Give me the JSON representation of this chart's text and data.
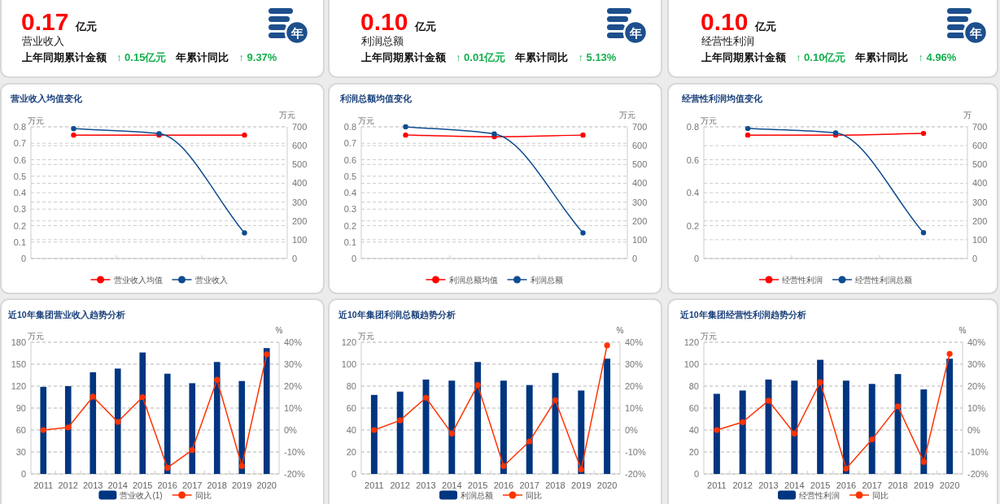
{
  "chart_data": [
    {
      "type": "other",
      "title": "营业收入",
      "annotations": [
        "0.17",
        "亿元",
        "上年同期累计金额",
        "↑ 0.15亿元",
        "年累计同比",
        "↑ 9.37%",
        "年"
      ]
    },
    {
      "type": "other",
      "title": "利润总额",
      "annotations": [
        "0.10",
        "亿元",
        "上年同期累计金额",
        "↑ 0.01亿元",
        "年累计同比",
        "↑ 5.13%",
        "年"
      ]
    },
    {
      "type": "other",
      "title": "经营性利润",
      "annotations": [
        "0.10",
        "亿元",
        "上年同期累计金额",
        "↑ 0.10亿元",
        "年累计同比",
        "↑ 4.96%",
        "年"
      ]
    },
    {
      "type": "line",
      "title": "营业收入均值变化",
      "ylabel": "万元",
      "y2label": "万元",
      "categories": [
        null,
        null,
        null
      ],
      "series": [
        {
          "name": "营业收入均值",
          "color": "#ff0000",
          "values": [
            0.75,
            0.75,
            0.75
          ]
        },
        {
          "name": "营业收入",
          "color": "#0f4c8f",
          "axis": "y2",
          "values": [
            690,
            664,
            136
          ]
        }
      ],
      "ylim": [
        0,
        0.8
      ],
      "yticks": [
        0,
        0.1,
        0.2,
        0.3,
        0.4,
        0.5,
        0.6,
        0.7,
        0.8
      ],
      "y2lim": [
        0,
        700
      ],
      "y2ticks": [
        0,
        100,
        200,
        300,
        400,
        500,
        600,
        700
      ],
      "grid": true,
      "legend": "bottom",
      "marker": "circle"
    },
    {
      "type": "line",
      "title": "利润总额均值变化",
      "ylabel": "万元",
      "y2label": "万元",
      "categories": [
        null,
        null,
        null
      ],
      "series": [
        {
          "name": "利润总额均值",
          "color": "#ff0000",
          "values": [
            0.75,
            0.74,
            0.75
          ]
        },
        {
          "name": "利润总额",
          "color": "#0f4c8f",
          "axis": "y2",
          "values": [
            700,
            662,
            136
          ]
        }
      ],
      "ylim": [
        0,
        0.8
      ],
      "yticks": [
        0,
        0.1,
        0.2,
        0.3,
        0.4,
        0.5,
        0.6,
        0.7,
        0.8
      ],
      "y2lim": [
        0,
        700
      ],
      "y2ticks": [
        0,
        100,
        200,
        300,
        400,
        500,
        600,
        700
      ],
      "grid": true,
      "legend": "bottom",
      "marker": "circle"
    },
    {
      "type": "line",
      "title": "经营性利润均值变化",
      "ylabel": "万元",
      "y2label": "万",
      "categories": [
        null,
        null,
        null
      ],
      "series": [
        {
          "name": "经营性利润",
          "color": "#ff0000",
          "values": [
            0.75,
            0.75,
            0.76
          ]
        },
        {
          "name": "经营性利润总额",
          "color": "#0f4c8f",
          "axis": "y2",
          "values": [
            691,
            668,
            137
          ]
        }
      ],
      "ylim": [
        0,
        0.8
      ],
      "yticks": [
        0,
        0.2,
        0.4,
        0.6,
        0.8
      ],
      "y2lim": [
        0,
        700
      ],
      "y2ticks": [
        0,
        100,
        200,
        300,
        400,
        500,
        600,
        700
      ],
      "grid": true,
      "legend": "bottom",
      "marker": "circle"
    },
    {
      "type": "bar",
      "title": "近10年集团营业收入趋势分析",
      "ylabel": "万元",
      "y2label": "%",
      "categories": [
        "2011",
        "2012",
        "2013",
        "2014",
        "2015",
        "2016",
        "2017",
        "2018",
        "2019",
        "2020"
      ],
      "series": [
        {
          "name": "营业收入(1)",
          "color": "#003580",
          "values": [
            119,
            120,
            139,
            144,
            166,
            137,
            124,
            153,
            127,
            172
          ]
        },
        {
          "name": "同比",
          "type": "line",
          "axis": "y2",
          "color": "#ff3300",
          "values": [
            0,
            1.2,
            15.2,
            3.7,
            15,
            -17.2,
            -9.1,
            22.9,
            -16.4,
            34.5
          ]
        }
      ],
      "ylim": [
        0,
        180
      ],
      "yticks": [
        0,
        30,
        60,
        90,
        120,
        150,
        180
      ],
      "y2lim": [
        -20,
        40
      ],
      "y2ticks": [
        {
          "value": -20,
          "label": "-20%"
        },
        {
          "value": -10,
          "label": "-10%"
        },
        {
          "value": 0,
          "label": "0%"
        },
        {
          "value": 10,
          "label": "10%"
        },
        {
          "value": 20,
          "label": "20%"
        },
        {
          "value": 30,
          "label": "30%"
        },
        {
          "value": 40,
          "label": "40%"
        }
      ],
      "grid": true,
      "legend": "bottom",
      "marker": "circle"
    },
    {
      "type": "bar",
      "title": "近10年集团利润总额趋势分析",
      "ylabel": "万元",
      "y2label": "%",
      "categories": [
        "2011",
        "2012",
        "2013",
        "2014",
        "2015",
        "2016",
        "2017",
        "2018",
        "2019",
        "2020"
      ],
      "series": [
        {
          "name": "利润总额",
          "color": "#003580",
          "values": [
            72,
            75,
            86,
            85,
            102,
            85,
            81,
            92,
            76,
            105
          ]
        },
        {
          "name": "同比",
          "type": "line",
          "axis": "y2",
          "color": "#ff3300",
          "values": [
            0,
            4.4,
            14.7,
            -1.6,
            20.5,
            -16.4,
            -5.2,
            13.6,
            -18,
            38.6
          ]
        }
      ],
      "ylim": [
        0,
        120
      ],
      "yticks": [
        0,
        20,
        40,
        60,
        80,
        100,
        120
      ],
      "y2lim": [
        -20,
        40
      ],
      "y2ticks": [
        {
          "value": -20,
          "label": "-20%"
        },
        {
          "value": -10,
          "label": "-10%"
        },
        {
          "value": 0,
          "label": "0%"
        },
        {
          "value": 10,
          "label": "10%"
        },
        {
          "value": 20,
          "label": "20%"
        },
        {
          "value": 30,
          "label": "30%"
        },
        {
          "value": 40,
          "label": "40%"
        }
      ],
      "grid": true,
      "legend": "bottom",
      "marker": "circle"
    },
    {
      "type": "bar",
      "title": "近10年集团经营性利润趋势分析",
      "ylabel": "万元",
      "y2label": "%",
      "categories": [
        "2011",
        "2012",
        "2013",
        "2014",
        "2015",
        "2016",
        "2017",
        "2018",
        "2019",
        "2020"
      ],
      "series": [
        {
          "name": "经营性利润",
          "color": "#003580",
          "values": [
            73,
            76,
            86,
            85,
            104,
            85,
            82,
            91,
            77,
            105
          ]
        },
        {
          "name": "同比",
          "type": "line",
          "axis": "y2",
          "color": "#ff3300",
          "values": [
            0,
            3.6,
            13.4,
            -1.6,
            21.8,
            -17.6,
            -4.3,
            10.8,
            -14.5,
            34.7
          ]
        }
      ],
      "ylim": [
        0,
        120
      ],
      "yticks": [
        0,
        20,
        40,
        60,
        80,
        100,
        120
      ],
      "y2lim": [
        -20,
        40
      ],
      "y2ticks": [
        {
          "value": -20,
          "label": "-20%"
        },
        {
          "value": -10,
          "label": "-10%"
        },
        {
          "value": 0,
          "label": "0%"
        },
        {
          "value": 10,
          "label": "10%"
        },
        {
          "value": 20,
          "label": "20%"
        },
        {
          "value": 30,
          "label": "30%"
        },
        {
          "value": 40,
          "label": "40%"
        }
      ],
      "grid": true,
      "legend": "bottom",
      "marker": "circle"
    }
  ]
}
